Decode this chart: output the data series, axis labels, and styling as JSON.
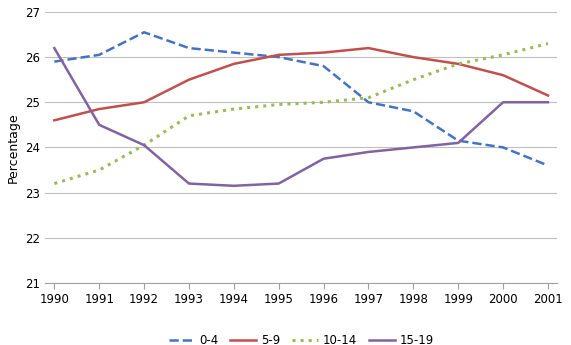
{
  "years": [
    1990,
    1991,
    1992,
    1993,
    1994,
    1995,
    1996,
    1997,
    1998,
    1999,
    2000,
    2001
  ],
  "series": {
    "0-4": [
      25.9,
      26.05,
      26.55,
      26.2,
      26.1,
      26.0,
      25.8,
      25.0,
      24.8,
      24.15,
      24.0,
      23.6
    ],
    "5-9": [
      24.6,
      24.85,
      25.0,
      25.5,
      25.85,
      26.05,
      26.1,
      26.2,
      26.0,
      25.85,
      25.6,
      25.15
    ],
    "10-14": [
      23.2,
      23.5,
      24.05,
      24.7,
      24.85,
      24.95,
      25.0,
      25.1,
      25.5,
      25.85,
      26.05,
      26.3
    ],
    "15-19": [
      26.2,
      24.5,
      24.05,
      23.2,
      23.15,
      23.2,
      23.75,
      23.9,
      24.0,
      24.1,
      25.0,
      25.0
    ]
  },
  "colors": {
    "0-4": "#4472C4",
    "5-9": "#C0504D",
    "10-14": "#9BBB59",
    "15-19": "#8064A2"
  },
  "linestyles": {
    "0-4": "--",
    "5-9": "-",
    "10-14": ":",
    "15-19": "-"
  },
  "ylabel": "Percentage",
  "ylim": [
    21,
    27
  ],
  "yticks": [
    21,
    22,
    23,
    24,
    25,
    26,
    27
  ],
  "background_color": "#ffffff",
  "grid_color": "#bfbfbf",
  "legend_order": [
    "0-4",
    "5-9",
    "10-14",
    "15-19"
  ],
  "linewidth": 1.8,
  "dotted_linewidth": 2.2
}
